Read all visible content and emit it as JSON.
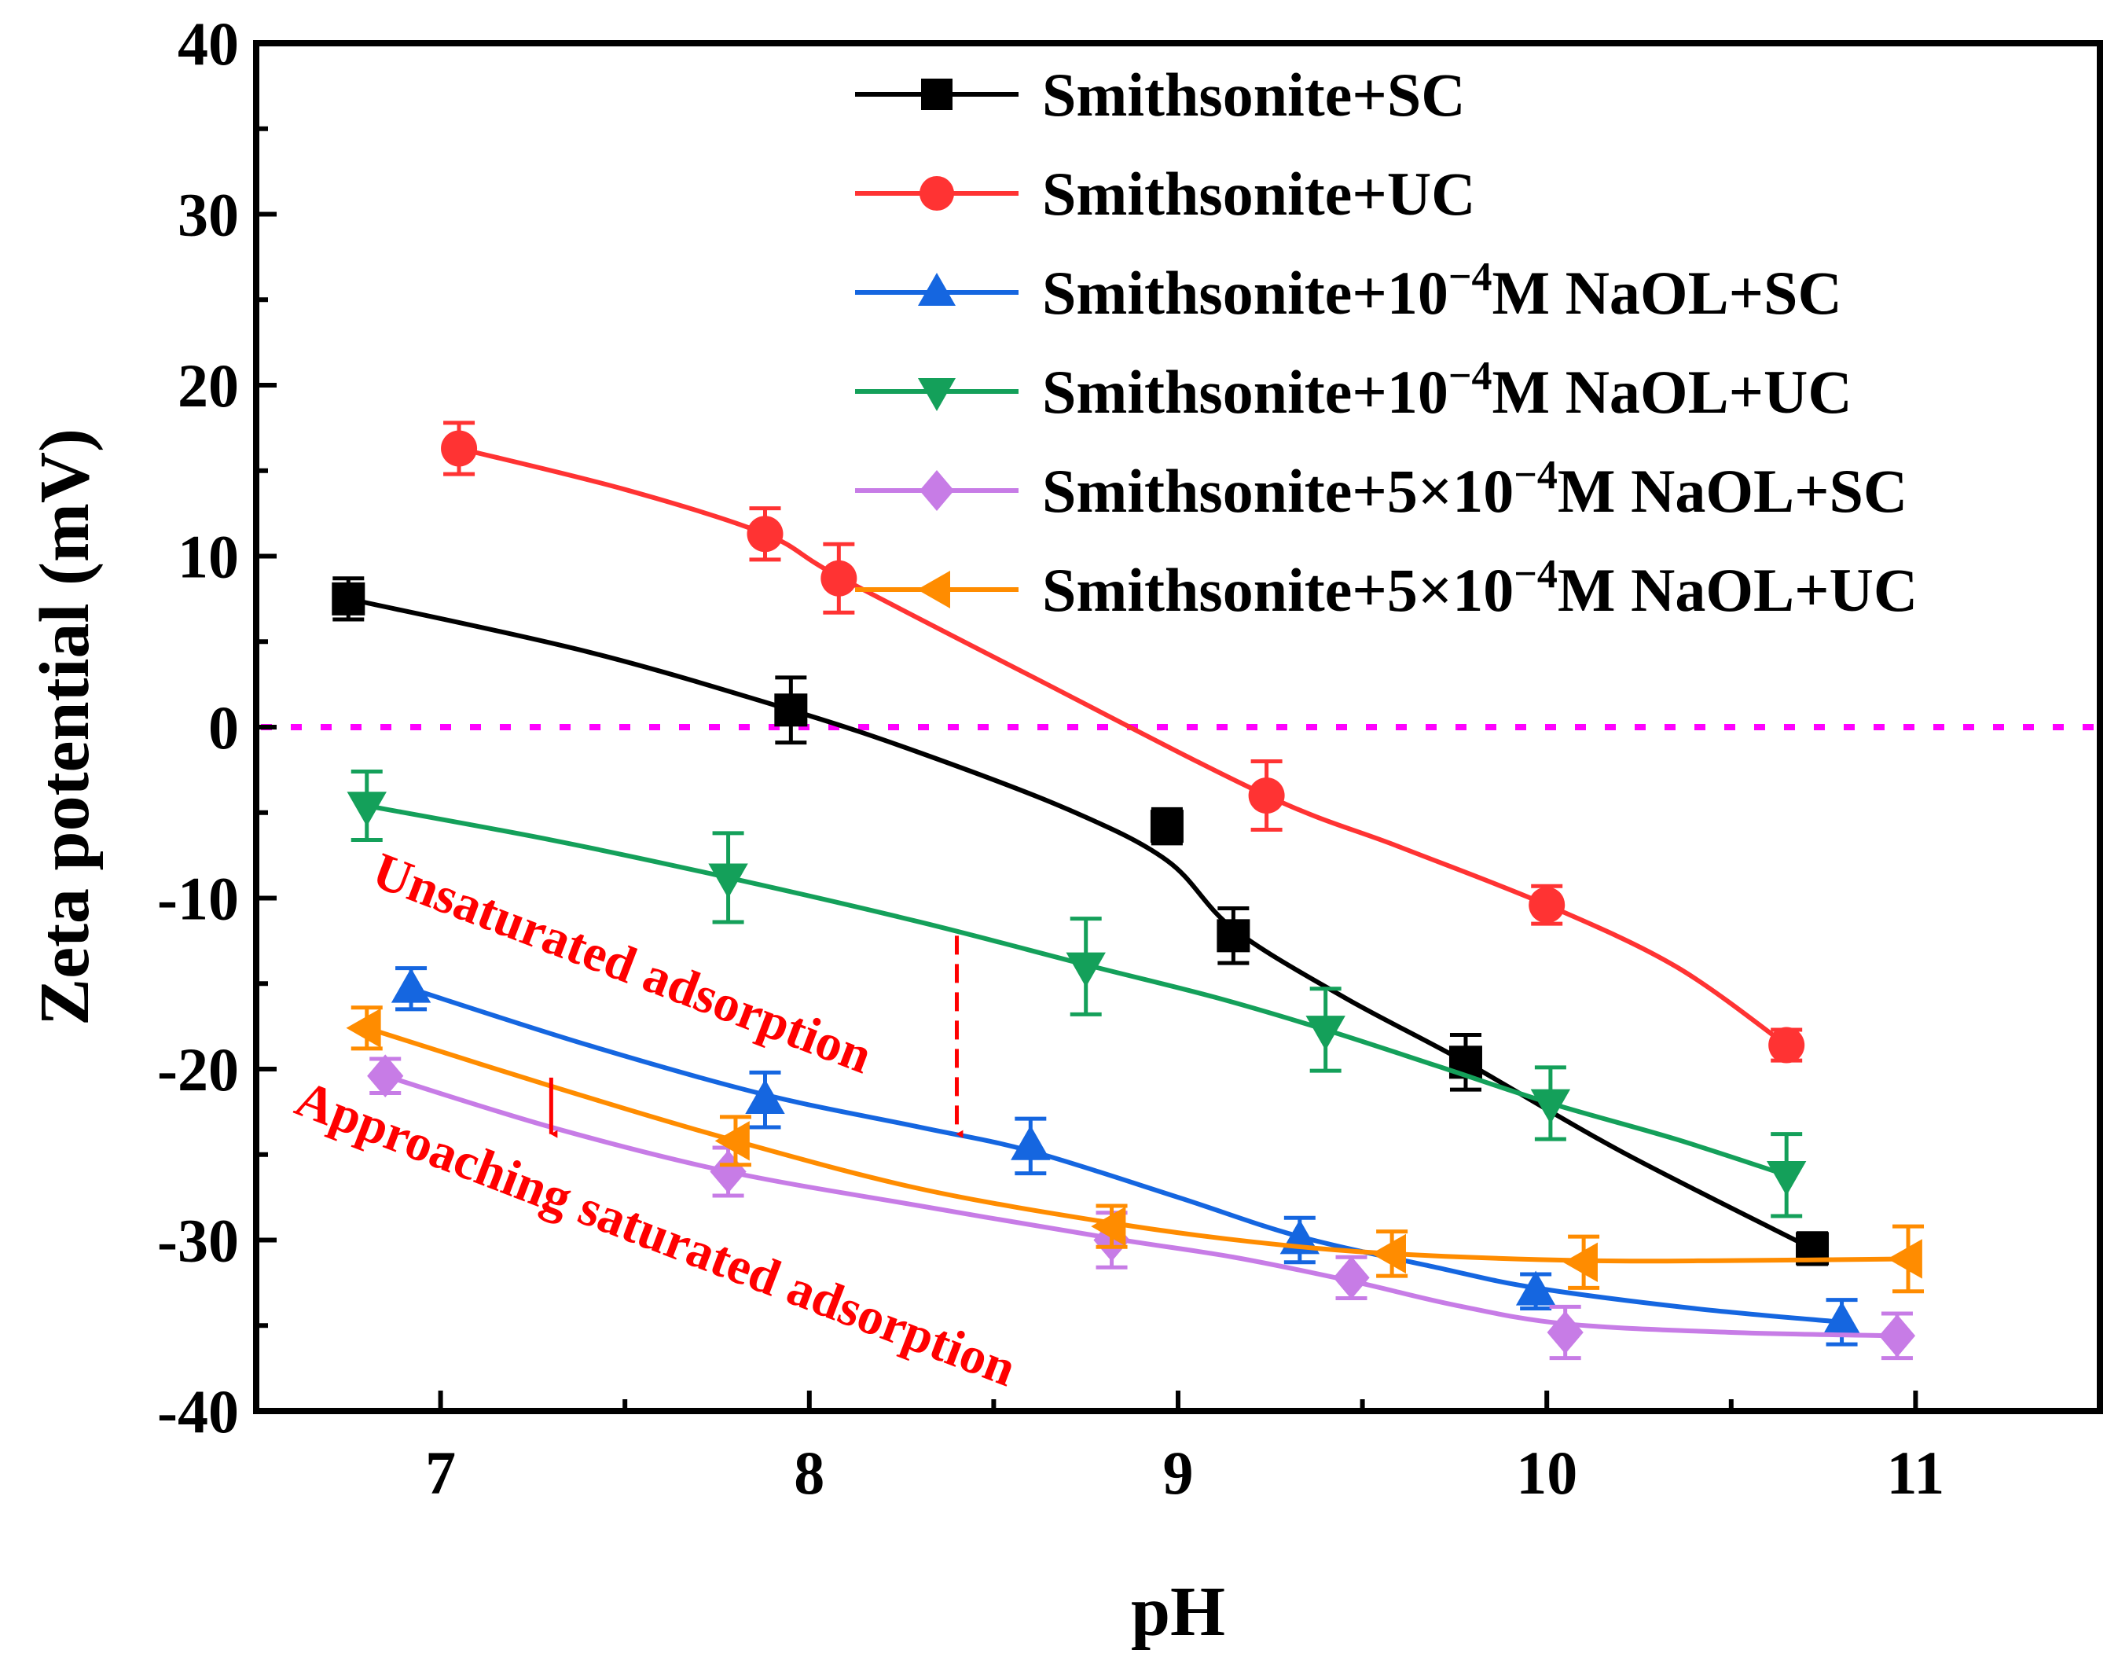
{
  "chart_data": {
    "type": "line",
    "xlabel": "pH",
    "ylabel": "Zeta potential (mV)",
    "xlim": [
      6.5,
      11.5
    ],
    "ylim": [
      -40,
      40
    ],
    "x_ticks": [
      7,
      8,
      9,
      10,
      11
    ],
    "y_ticks": [
      40,
      30,
      20,
      10,
      0,
      -10,
      -20,
      -30,
      -40
    ],
    "x_tick_labels": [
      "7",
      "8",
      "9",
      "10",
      "11"
    ],
    "y_tick_labels": [
      "40",
      "30",
      "20",
      "10",
      "0",
      "-10",
      "-20",
      "-30",
      "-40"
    ],
    "reference_line": {
      "y": 0,
      "style": "dotted",
      "color": "#ff00ff"
    },
    "series": [
      {
        "name": "Smithsonite+SC",
        "legend": {
          "base": "Smithsonite+SC",
          "sup": "",
          "tail": ""
        },
        "color": "#000000",
        "marker": "square",
        "points": [
          {
            "x": 6.75,
            "y": 7.5,
            "err": 1.2
          },
          {
            "x": 7.95,
            "y": 1.0,
            "err": 1.9
          },
          {
            "x": 8.97,
            "y": -5.8,
            "err": 1.0
          },
          {
            "x": 9.15,
            "y": -12.2,
            "err": 1.6
          },
          {
            "x": 9.78,
            "y": -19.6,
            "err": 1.6
          },
          {
            "x": 10.72,
            "y": -30.5,
            "err": 0.9
          }
        ],
        "curve": [
          [
            6.75,
            7.5
          ],
          [
            7.4,
            4.4
          ],
          [
            7.95,
            1.0
          ],
          [
            8.3,
            -1.5
          ],
          [
            8.7,
            -4.8
          ],
          [
            8.97,
            -7.8
          ],
          [
            9.15,
            -11.8
          ],
          [
            9.45,
            -15.8
          ],
          [
            9.78,
            -19.6
          ],
          [
            10.2,
            -24.8
          ],
          [
            10.72,
            -30.5
          ]
        ]
      },
      {
        "name": "Smithsonite+UC",
        "legend": {
          "base": "Smithsonite+UC",
          "sup": "",
          "tail": ""
        },
        "color": "#ff3333",
        "marker": "circle",
        "points": [
          {
            "x": 7.05,
            "y": 16.3,
            "err": 1.5
          },
          {
            "x": 7.88,
            "y": 11.3,
            "err": 1.5
          },
          {
            "x": 8.08,
            "y": 8.7,
            "err": 2.0
          },
          {
            "x": 9.24,
            "y": -4.0,
            "err": 2.0
          },
          {
            "x": 10.0,
            "y": -10.4,
            "err": 1.1
          },
          {
            "x": 10.65,
            "y": -18.6,
            "err": 0.9
          }
        ],
        "curve": [
          [
            7.05,
            16.3
          ],
          [
            7.5,
            13.9
          ],
          [
            7.88,
            11.3
          ],
          [
            8.08,
            8.8
          ],
          [
            8.6,
            3.0
          ],
          [
            9.24,
            -4.0
          ],
          [
            9.6,
            -7.0
          ],
          [
            10.0,
            -10.4
          ],
          [
            10.35,
            -14.0
          ],
          [
            10.65,
            -18.6
          ]
        ]
      },
      {
        "name": "Smithsonite+10−4M NaOL+SC",
        "legend": {
          "base": "Smithsonite+10",
          "sup": "−4",
          "tail": "M NaOL+SC"
        },
        "color": "#1566e0",
        "marker": "triangle-up",
        "points": [
          {
            "x": 6.92,
            "y": -15.3,
            "err": 1.2
          },
          {
            "x": 7.88,
            "y": -21.8,
            "err": 1.6
          },
          {
            "x": 8.6,
            "y": -24.5,
            "err": 1.6
          },
          {
            "x": 9.33,
            "y": -30.0,
            "err": 1.3
          },
          {
            "x": 9.97,
            "y": -33.0,
            "err": 1.0
          },
          {
            "x": 10.8,
            "y": -34.8,
            "err": 1.3
          }
        ],
        "curve": [
          [
            6.92,
            -15.3
          ],
          [
            7.4,
            -18.6
          ],
          [
            7.88,
            -21.5
          ],
          [
            8.3,
            -23.4
          ],
          [
            8.6,
            -24.8
          ],
          [
            9.0,
            -27.5
          ],
          [
            9.33,
            -29.8
          ],
          [
            9.7,
            -31.6
          ],
          [
            9.97,
            -32.8
          ],
          [
            10.4,
            -34.0
          ],
          [
            10.8,
            -34.8
          ]
        ]
      },
      {
        "name": "Smithsonite+10−4M NaOL+UC",
        "legend": {
          "base": "Smithsonite+10",
          "sup": "−4",
          "tail": "M NaOL+UC"
        },
        "color": "#14a05a",
        "marker": "triangle-down",
        "points": [
          {
            "x": 6.8,
            "y": -4.6,
            "err": 2.0
          },
          {
            "x": 7.78,
            "y": -8.8,
            "err": 2.6
          },
          {
            "x": 8.75,
            "y": -14.0,
            "err": 2.8
          },
          {
            "x": 9.4,
            "y": -17.7,
            "err": 2.4
          },
          {
            "x": 10.01,
            "y": -22.0,
            "err": 2.1
          },
          {
            "x": 10.65,
            "y": -26.2,
            "err": 2.4
          }
        ],
        "curve": [
          [
            6.8,
            -4.6
          ],
          [
            7.3,
            -6.6
          ],
          [
            7.78,
            -8.8
          ],
          [
            8.3,
            -11.4
          ],
          [
            8.75,
            -13.9
          ],
          [
            9.1,
            -15.8
          ],
          [
            9.4,
            -17.7
          ],
          [
            9.7,
            -19.8
          ],
          [
            10.01,
            -22.0
          ],
          [
            10.35,
            -24.1
          ],
          [
            10.65,
            -26.2
          ]
        ]
      },
      {
        "name": "Smithsonite+5×10−4M NaOL+SC",
        "legend": {
          "base": "Smithsonite+5×10",
          "sup": "−4",
          "tail": "M NaOL+SC"
        },
        "color": "#c77ce6",
        "marker": "diamond",
        "points": [
          {
            "x": 6.85,
            "y": -20.4,
            "err": 1.0
          },
          {
            "x": 7.78,
            "y": -26.0,
            "err": 1.4
          },
          {
            "x": 8.82,
            "y": -30.0,
            "err": 1.6
          },
          {
            "x": 9.47,
            "y": -32.2,
            "err": 1.2
          },
          {
            "x": 10.05,
            "y": -35.4,
            "err": 1.5
          },
          {
            "x": 10.95,
            "y": -35.6,
            "err": 1.3
          }
        ],
        "curve": [
          [
            6.85,
            -20.4
          ],
          [
            7.3,
            -23.4
          ],
          [
            7.78,
            -26.0
          ],
          [
            8.3,
            -28.0
          ],
          [
            8.82,
            -29.9
          ],
          [
            9.15,
            -31.0
          ],
          [
            9.47,
            -32.4
          ],
          [
            9.75,
            -33.8
          ],
          [
            10.05,
            -34.9
          ],
          [
            10.5,
            -35.4
          ],
          [
            10.95,
            -35.6
          ]
        ]
      },
      {
        "name": "Smithsonite+5×10−4M NaOL+UC",
        "legend": {
          "base": "Smithsonite+5×10",
          "sup": "−4",
          "tail": "M NaOL+UC"
        },
        "color": "#ff8c00",
        "marker": "triangle-left",
        "points": [
          {
            "x": 6.8,
            "y": -17.6,
            "err": 1.2
          },
          {
            "x": 7.8,
            "y": -24.2,
            "err": 1.4
          },
          {
            "x": 8.82,
            "y": -29.2,
            "err": 1.2
          },
          {
            "x": 9.58,
            "y": -30.8,
            "err": 1.3
          },
          {
            "x": 10.1,
            "y": -31.3,
            "err": 1.5
          },
          {
            "x": 10.98,
            "y": -31.1,
            "err": 1.9
          }
        ],
        "curve": [
          [
            6.8,
            -17.6
          ],
          [
            7.3,
            -21.0
          ],
          [
            7.8,
            -24.2
          ],
          [
            8.3,
            -27.0
          ],
          [
            8.82,
            -29.0
          ],
          [
            9.2,
            -30.1
          ],
          [
            9.58,
            -30.8
          ],
          [
            10.1,
            -31.2
          ],
          [
            10.5,
            -31.2
          ],
          [
            10.98,
            -31.1
          ]
        ]
      }
    ],
    "annotations": [
      {
        "text": "Unsaturated adsorption",
        "color": "#ff0000"
      },
      {
        "text": "Approaching saturated adsorption",
        "color": "#ff0000"
      }
    ],
    "arrows": [
      {
        "style": "dashed",
        "x": 8.4,
        "y_from": -12.2,
        "y_to": -23.8,
        "color": "#ff0000"
      },
      {
        "style": "solid",
        "x": 7.3,
        "y_from": -20.5,
        "y_to": -23.8,
        "color": "#ff0000"
      }
    ]
  }
}
